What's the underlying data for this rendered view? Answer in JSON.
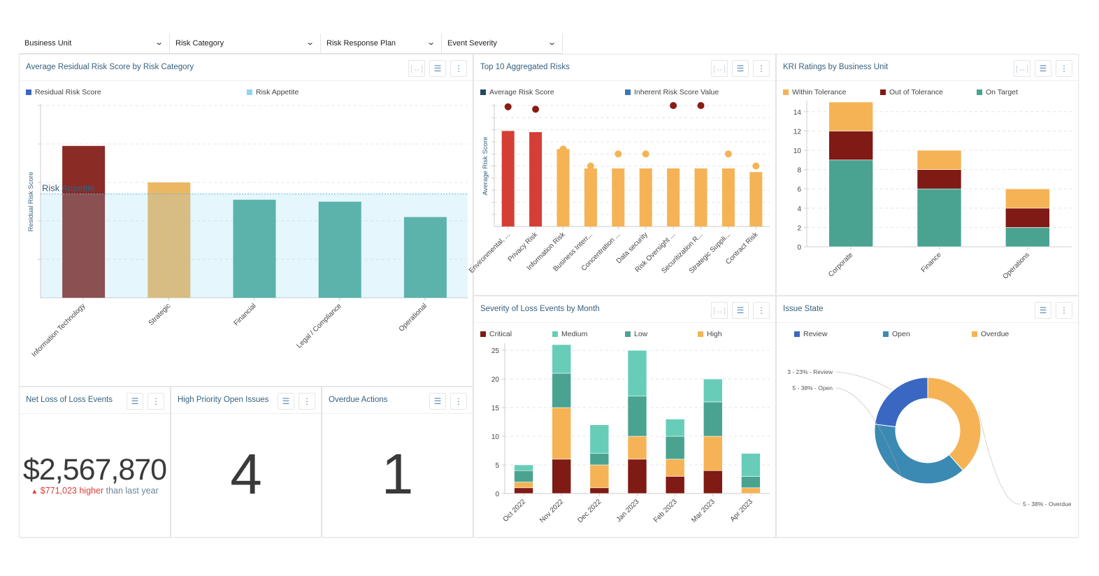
{
  "filters": [
    {
      "label": "Business Unit"
    },
    {
      "label": "Risk Category"
    },
    {
      "label": "Risk Response Plan"
    },
    {
      "label": "Event Severity"
    }
  ],
  "icons": {
    "dropdown": "chevron-down-icon",
    "fit": "fit-width-icon",
    "filter": "filter-icon",
    "menu": "kebab-menu-icon"
  },
  "panels": {
    "residual": {
      "title": "Average Residual Risk Score by Risk Category",
      "legend": [
        {
          "label": "Residual Risk Score",
          "color": "#3a67c2"
        },
        {
          "label": "Risk Appetite",
          "color": "#8fd4f5"
        }
      ]
    },
    "top10": {
      "title": "Top 10 Aggregated Risks",
      "legend": [
        {
          "label": "Average Risk Score",
          "color": "#254a5e"
        },
        {
          "label": "Inherent Risk Score Value",
          "color": "#3a78b5"
        }
      ]
    },
    "kri": {
      "title": "KRI Ratings by Business Unit",
      "legend": [
        {
          "label": "Within Tolerance",
          "color": "#f5b355"
        },
        {
          "label": "Out of Tolerance",
          "color": "#7f1a14"
        },
        {
          "label": "On Target",
          "color": "#4aa391"
        }
      ]
    },
    "netloss": {
      "title": "Net Loss of Loss Events",
      "value": "$2,567,870",
      "delta_arrow": "▲",
      "delta_value": "$771,023 higher",
      "delta_suffix": "than last year"
    },
    "openissues": {
      "title": "High Priority Open Issues",
      "value": "4"
    },
    "overdue": {
      "title": "Overdue Actions",
      "value": "1"
    },
    "severity": {
      "title": "Severity of Loss Events by Month",
      "legend": [
        {
          "label": "Critical",
          "color": "#7f1a14"
        },
        {
          "label": "Medium",
          "color": "#67cdb9"
        },
        {
          "label": "Low",
          "color": "#4aa391"
        },
        {
          "label": "High",
          "color": "#f5b355"
        }
      ]
    },
    "issuestate": {
      "title": "Issue State",
      "legend": [
        {
          "label": "Review",
          "color": "#3a67c2"
        },
        {
          "label": "Open",
          "color": "#3a8ab3"
        },
        {
          "label": "Overdue",
          "color": "#f5b355"
        }
      ]
    }
  },
  "chart_data": [
    {
      "id": "residual",
      "type": "bar",
      "title": "Average Residual Risk Score by Risk Category",
      "ylabel": "Residual Risk Score",
      "categories": [
        "Information Technology",
        "Strategic",
        "Financial",
        "Legal / Compliance",
        "Operational"
      ],
      "values": [
        3.95,
        3.0,
        2.55,
        2.5,
        2.1
      ],
      "colors": [
        "#8b2b25",
        "#ecb763",
        "#4ea996",
        "#4ea996",
        "#4ea996"
      ],
      "ylim": [
        0,
        5
      ],
      "y_ticks_shown": false,
      "reference_line": {
        "label": "Risk Appetite",
        "value": 2.7,
        "color": "#8fd4f5"
      },
      "grid": true,
      "legend": "top-left"
    },
    {
      "id": "top10",
      "type": "bar",
      "title": "Top 10 Aggregated Risks",
      "ylabel": "Average Risk Score",
      "categories": [
        "Environmental, ...",
        "Privacy Risk",
        "Information Risk",
        "Business Interr...",
        "Concentration ...",
        "Data security",
        "Risk Oversight ...",
        "Securitization R...",
        "Strategic Suppli...",
        "Contract Risk"
      ],
      "series": [
        {
          "name": "Average Risk Score",
          "type": "bar",
          "values": [
            3.95,
            3.9,
            3.2,
            2.4,
            2.4,
            2.4,
            2.4,
            2.4,
            2.4,
            2.25
          ],
          "colors": [
            "#d43f35",
            "#d43f35",
            "#f5b355",
            "#f5b355",
            "#f5b355",
            "#f5b355",
            "#f5b355",
            "#f5b355",
            "#f5b355",
            "#f5b355"
          ]
        },
        {
          "name": "Inherent Risk Score Value",
          "type": "scatter",
          "values": [
            4.95,
            4.85,
            3.2,
            2.5,
            3.0,
            3.0,
            5.0,
            5.0,
            3.0,
            2.5
          ],
          "colors": [
            "#8a1c15",
            "#8a1c15",
            "#f5b355",
            "#f5b355",
            "#f5b355",
            "#f5b355",
            "#8a1c15",
            "#8a1c15",
            "#f5b355",
            "#f5b355"
          ]
        }
      ],
      "ylim": [
        0,
        5
      ],
      "y_ticks_shown": false,
      "grid": true,
      "legend": "top-left"
    },
    {
      "id": "kri",
      "type": "bar",
      "stacked": true,
      "title": "KRI Ratings by Business Unit",
      "categories": [
        "Corporate",
        "Finance",
        "Operations"
      ],
      "series": [
        {
          "name": "On Target",
          "values": [
            9,
            6,
            2
          ],
          "color": "#4aa391"
        },
        {
          "name": "Out of Tolerance",
          "values": [
            3,
            2,
            2
          ],
          "color": "#7f1a14"
        },
        {
          "name": "Within Tolerance",
          "values": [
            3,
            2,
            2
          ],
          "color": "#f5b355"
        }
      ],
      "ylim": [
        0,
        15
      ],
      "yticks": [
        0,
        2,
        4,
        6,
        8,
        10,
        12,
        14
      ],
      "grid": true,
      "legend": "top-left"
    },
    {
      "id": "severity",
      "type": "bar",
      "stacked": true,
      "title": "Severity of Loss Events by Month",
      "categories": [
        "Oct 2022",
        "Nov 2022",
        "Dec 2022",
        "Jan 2023",
        "Feb 2023",
        "Mar 2023",
        "Apr 2023"
      ],
      "series": [
        {
          "name": "Critical",
          "values": [
            1,
            6,
            1,
            6,
            3,
            4,
            0
          ],
          "color": "#7f1a14"
        },
        {
          "name": "High",
          "values": [
            1,
            9,
            4,
            4,
            3,
            6,
            1
          ],
          "color": "#f5b355"
        },
        {
          "name": "Low",
          "values": [
            2,
            6,
            2,
            7,
            4,
            6,
            2
          ],
          "color": "#4aa391"
        },
        {
          "name": "Medium",
          "values": [
            1,
            5,
            5,
            8,
            3,
            4,
            4
          ],
          "color": "#67cdb9"
        }
      ],
      "ylim": [
        0,
        26
      ],
      "yticks": [
        0,
        5,
        10,
        15,
        20,
        25
      ],
      "grid": true,
      "legend": "top-left"
    },
    {
      "id": "issuestate",
      "type": "pie",
      "donut": true,
      "title": "Issue State",
      "slices": [
        {
          "label": "Overdue",
          "value": 5,
          "percent": 38,
          "color": "#f5b355",
          "data_label": "5 - 38% - Overdue"
        },
        {
          "label": "Open",
          "value": 5,
          "percent": 38,
          "color": "#3a8ab3",
          "data_label": "5 - 38% - Open"
        },
        {
          "label": "Review",
          "value": 3,
          "percent": 23,
          "color": "#3a67c2",
          "data_label": "3 - 23% - Review"
        }
      ],
      "legend": "top-left"
    }
  ]
}
